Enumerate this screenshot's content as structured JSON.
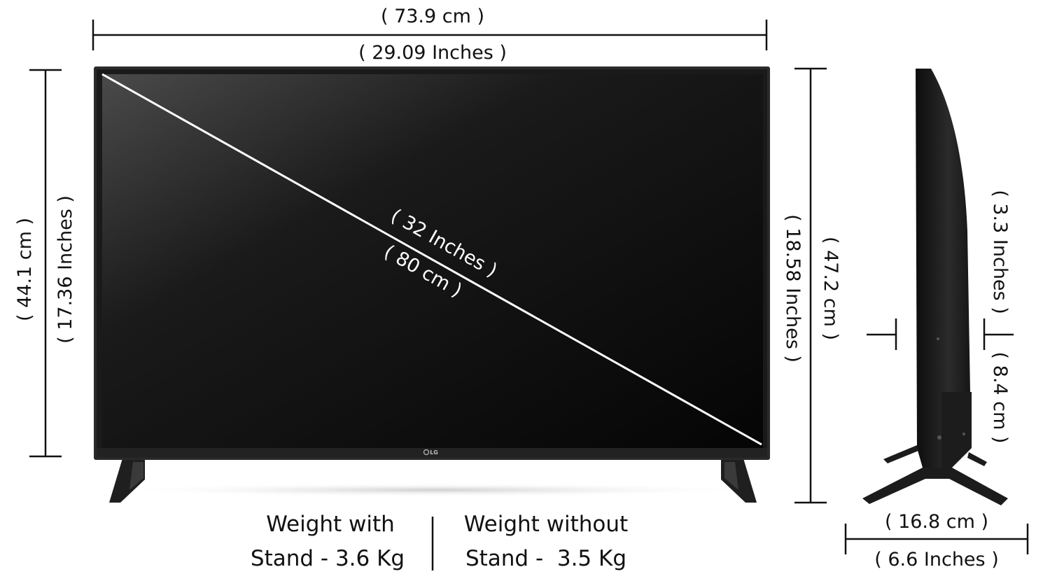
{
  "top_width": {
    "cm": "( 73.9 cm )",
    "inches": "( 29.09 Inches )"
  },
  "left_height": {
    "cm": "( 44.1 cm )",
    "inches": "( 17.36 Inches )"
  },
  "diagonal": {
    "inches": "( 32 Inches )",
    "cm": "( 80 cm )"
  },
  "right_height": {
    "inches": "( 18.58 Inches )",
    "cm": "( 47.2 cm )"
  },
  "side_depth": {
    "upper": "( 3.3 Inches )",
    "lower": "( 8.4 cm )"
  },
  "stand_depth": {
    "cm": "( 16.8 cm )",
    "inches": "( 6.6 Inches )"
  },
  "weight_with_stand": {
    "line1": "Weight with",
    "line2": "Stand - 3.6 Kg"
  },
  "weight_without_stand": {
    "line1": "Weight without",
    "line2": "Stand -  3.5 Kg"
  },
  "brand_logo": "LG",
  "colors": {
    "screen_dark": "#0b0b0b",
    "bezel": "#2a2a2a",
    "line": "#111111",
    "diagonal": "#ffffff"
  }
}
